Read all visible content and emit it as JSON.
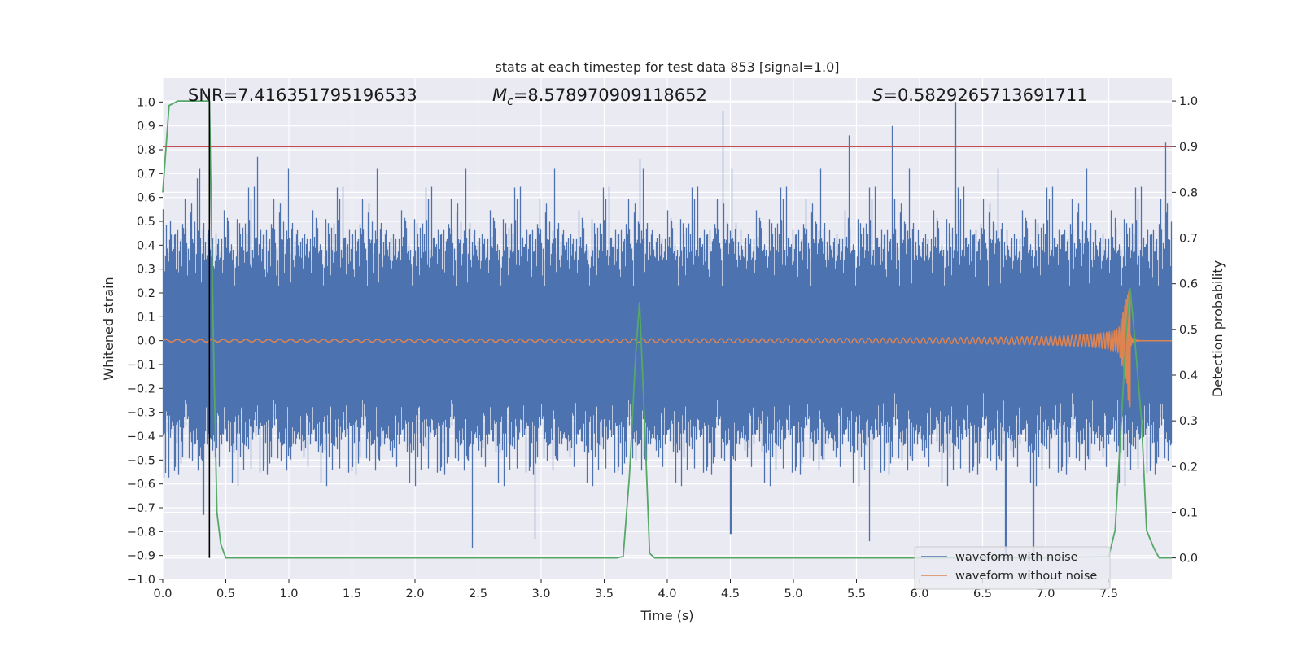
{
  "chart_data": {
    "type": "line",
    "title": "stats at each timestep for test data 853 [signal=1.0]",
    "xlabel": "Time (s)",
    "ylabel": "Whitened strain",
    "y2label": "Detection probability",
    "xlim": [
      0,
      8
    ],
    "ylim": [
      -1.0,
      1.1
    ],
    "y2lim": [
      -0.047,
      1.05
    ],
    "xticks": [
      "0.0",
      "0.5",
      "1.0",
      "1.5",
      "2.0",
      "2.5",
      "3.0",
      "3.5",
      "4.0",
      "4.5",
      "5.0",
      "5.5",
      "6.0",
      "6.5",
      "7.0",
      "7.5"
    ],
    "yticks": [
      "1.0",
      "0.9",
      "0.8",
      "0.7",
      "0.6",
      "0.5",
      "0.4",
      "0.3",
      "0.2",
      "0.1",
      "0.0",
      "−0.1",
      "−0.2",
      "−0.3",
      "−0.4",
      "−0.5",
      "−0.6",
      "−0.7",
      "−0.8",
      "−0.9",
      "−1.0"
    ],
    "y2ticks": [
      "1.0",
      "0.9",
      "0.8",
      "0.7",
      "0.6",
      "0.5",
      "0.4",
      "0.3",
      "0.2",
      "0.1",
      "0.0"
    ],
    "annotations": {
      "snr": "SNR=7.416351795196533",
      "mc_symbol": "M",
      "mc_sub": "c",
      "mc_value": "=8.578970909118652",
      "s_symbol": "S",
      "s_value": "=0.5829265713691711"
    },
    "threshold_y2": 0.9,
    "marker_x": 0.37,
    "grid": true,
    "legend_position": "lower-right",
    "series": [
      {
        "name": "waveform with noise",
        "color": "#4c72b0",
        "axis": "left",
        "noise_sigma": 0.18,
        "peaks": [
          {
            "x": 0.0,
            "y": 0.55
          },
          {
            "x": 0.27,
            "y": 0.68
          },
          {
            "x": 0.75,
            "y": 0.77
          },
          {
            "x": 3.78,
            "y": 0.76
          },
          {
            "x": 4.44,
            "y": 0.96
          },
          {
            "x": 5.44,
            "y": 0.86
          },
          {
            "x": 5.78,
            "y": 0.9
          },
          {
            "x": 6.28,
            "y": 1.0
          },
          {
            "x": 7.95,
            "y": 0.83
          },
          {
            "x": 0.32,
            "y": -0.73
          },
          {
            "x": 2.45,
            "y": -0.87
          },
          {
            "x": 2.95,
            "y": -0.83
          },
          {
            "x": 4.5,
            "y": -0.81
          },
          {
            "x": 5.6,
            "y": -0.84
          },
          {
            "x": 6.68,
            "y": -0.9
          },
          {
            "x": 6.9,
            "y": -0.91
          }
        ]
      },
      {
        "name": "waveform without noise",
        "color": "#dd8452",
        "axis": "left",
        "chirp": {
          "t_merge": 7.67,
          "peak_high": 0.22,
          "peak_low": -0.28,
          "start_amplitude": 0.012
        }
      },
      {
        "name": "",
        "color": "#55a868",
        "axis": "right",
        "x": [
          0.0,
          0.05,
          0.12,
          0.2,
          0.3,
          0.37,
          0.4,
          0.43,
          0.46,
          0.5,
          1.0,
          2.0,
          3.0,
          3.6,
          3.65,
          3.7,
          3.75,
          3.78,
          3.82,
          3.86,
          3.9,
          4.0,
          5.0,
          6.0,
          7.0,
          7.5,
          7.55,
          7.6,
          7.64,
          7.67,
          7.7,
          7.76,
          7.8,
          7.86,
          7.9,
          8.0
        ],
        "values": [
          0.8,
          0.99,
          1.0,
          1.0,
          1.0,
          1.0,
          0.5,
          0.1,
          0.03,
          0.0,
          0.0,
          0.0,
          0.0,
          0.0,
          0.003,
          0.18,
          0.45,
          0.56,
          0.3,
          0.01,
          0.0,
          0.0,
          0.0,
          0.0,
          0.0,
          0.003,
          0.06,
          0.3,
          0.5,
          0.59,
          0.5,
          0.3,
          0.06,
          0.02,
          0.0,
          0.0
        ]
      }
    ]
  }
}
